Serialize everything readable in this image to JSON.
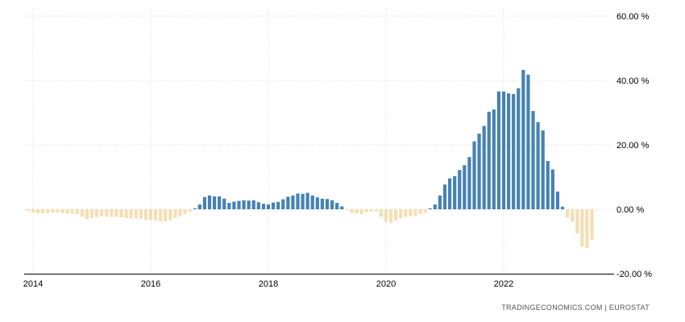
{
  "chart_data": {
    "type": "bar",
    "title": "",
    "xlabel": "",
    "ylabel": "",
    "y_unit": "%",
    "ylim": [
      -20,
      60
    ],
    "y_ticks": [
      60,
      40,
      20,
      0,
      -20
    ],
    "y_tick_labels": [
      "60.00 %",
      "40.00 %",
      "20.00 %",
      "0.00 %",
      "-20.00 %"
    ],
    "x_tick_labels": [
      "2014",
      "2016",
      "2018",
      "2020",
      "2022"
    ],
    "x_tick_years": [
      2014,
      2016,
      2018,
      2020,
      2022
    ],
    "start": {
      "year": 2013,
      "month": 12
    },
    "positive_color": "#4682b4",
    "negative_color": "#f5deb3",
    "grid": true,
    "values": [
      -0.5,
      -1.0,
      -1.2,
      -1.3,
      -1.2,
      -1.0,
      -1.0,
      -1.2,
      -1.3,
      -1.4,
      -1.5,
      -2.3,
      -3.0,
      -2.7,
      -2.4,
      -2.2,
      -2.3,
      -2.4,
      -2.4,
      -2.5,
      -2.8,
      -2.9,
      -2.9,
      -2.9,
      -3.3,
      -3.4,
      -3.5,
      -3.8,
      -3.8,
      -3.3,
      -2.6,
      -2.2,
      -1.5,
      -0.8,
      0.3,
      1.5,
      3.8,
      4.3,
      4.0,
      4.0,
      3.3,
      2.0,
      2.4,
      2.6,
      2.8,
      2.7,
      2.8,
      2.2,
      1.7,
      1.5,
      2.1,
      2.3,
      3.1,
      3.9,
      4.3,
      4.9,
      4.8,
      5.1,
      4.3,
      3.7,
      3.3,
      3.2,
      2.8,
      2.0,
      0.9,
      -0.3,
      -1.1,
      -1.2,
      -1.5,
      -0.9,
      -0.7,
      -0.7,
      -2.3,
      -3.9,
      -4.2,
      -3.5,
      -2.9,
      -2.4,
      -2.2,
      -2.0,
      -1.6,
      -1.1,
      0.3,
      1.5,
      4.3,
      7.7,
      9.6,
      10.3,
      12.2,
      13.7,
      16.2,
      21.1,
      23.5,
      25.9,
      30.3,
      31.0,
      36.6,
      36.6,
      36.0,
      35.8,
      37.6,
      43.3,
      41.8,
      30.5,
      27.1,
      24.5,
      15.0,
      12.4,
      5.5,
      0.8,
      -2.5,
      -3.8,
      -7.5,
      -11.5,
      -12.1,
      -9.4
    ]
  },
  "footer": {
    "credit": "TRADINGECONOMICS.COM  |  EUROSTAT"
  }
}
